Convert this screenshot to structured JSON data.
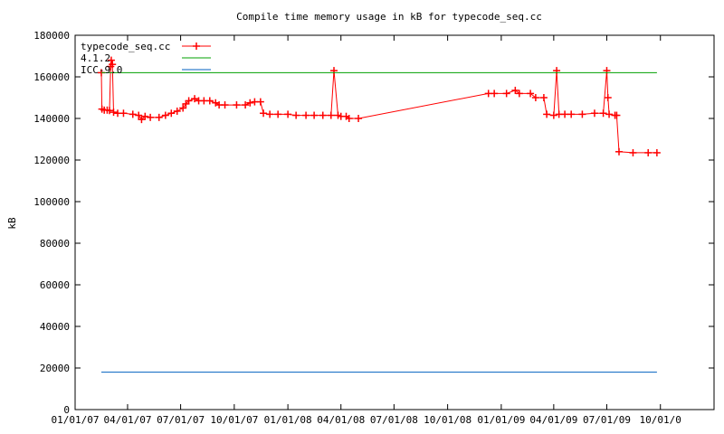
{
  "chart_data": {
    "type": "line",
    "title": "Compile time memory usage in kB for typecode_seq.cc",
    "xlabel": "",
    "ylabel": "kB",
    "xlim": [
      "2007-01-01",
      "2010-01-01"
    ],
    "ylim": [
      0,
      180000
    ],
    "grid": false,
    "legend_position": "top-left",
    "y_ticks": [
      0,
      20000,
      40000,
      60000,
      80000,
      100000,
      120000,
      140000,
      160000,
      180000
    ],
    "y_tick_labels": [
      "0",
      "20000",
      "40000",
      "60000",
      "80000",
      "100000",
      "120000",
      "140000",
      "160000",
      "180000"
    ],
    "x_ticks": [
      "2007-01-01",
      "2007-04-01",
      "2007-07-01",
      "2007-10-01",
      "2008-01-01",
      "2008-04-01",
      "2008-07-01",
      "2008-10-01",
      "2009-01-01",
      "2009-04-01",
      "2009-07-01",
      "2009-10-01"
    ],
    "x_tick_labels": [
      "01/01/07",
      "04/01/07",
      "07/01/07",
      "10/01/07",
      "01/01/08",
      "04/01/08",
      "07/01/08",
      "10/01/08",
      "01/01/09",
      "04/01/09",
      "07/01/09",
      "10/01/0"
    ],
    "series": [
      {
        "name": "typecode_seq.cc",
        "color": "#ff0000",
        "style": "linespoints",
        "points": [
          [
            "2007-02-15",
            162000
          ],
          [
            "2007-02-16",
            144500
          ],
          [
            "2007-02-20",
            144000
          ],
          [
            "2007-02-25",
            144000
          ],
          [
            "2007-03-01",
            143800
          ],
          [
            "2007-03-03",
            165000
          ],
          [
            "2007-03-04",
            168000
          ],
          [
            "2007-03-06",
            166000
          ],
          [
            "2007-03-08",
            143000
          ],
          [
            "2007-03-15",
            142500
          ],
          [
            "2007-03-25",
            142500
          ],
          [
            "2007-04-10",
            142000
          ],
          [
            "2007-04-20",
            141500
          ],
          [
            "2007-04-25",
            139500
          ],
          [
            "2007-05-01",
            141000
          ],
          [
            "2007-05-10",
            140500
          ],
          [
            "2007-05-25",
            140500
          ],
          [
            "2007-06-05",
            141500
          ],
          [
            "2007-06-15",
            142500
          ],
          [
            "2007-06-25",
            143500
          ],
          [
            "2007-07-05",
            145000
          ],
          [
            "2007-07-10",
            147000
          ],
          [
            "2007-07-15",
            148500
          ],
          [
            "2007-07-25",
            149500
          ],
          [
            "2007-08-01",
            148500
          ],
          [
            "2007-08-10",
            148500
          ],
          [
            "2007-08-20",
            148500
          ],
          [
            "2007-08-30",
            147500
          ],
          [
            "2007-09-05",
            146500
          ],
          [
            "2007-09-15",
            146500
          ],
          [
            "2007-10-05",
            146500
          ],
          [
            "2007-10-20",
            146500
          ],
          [
            "2007-10-28",
            147500
          ],
          [
            "2007-11-05",
            148000
          ],
          [
            "2007-11-15",
            148000
          ],
          [
            "2007-11-20",
            142500
          ],
          [
            "2007-12-01",
            142000
          ],
          [
            "2007-12-15",
            142000
          ],
          [
            "2008-01-01",
            142000
          ],
          [
            "2008-01-15",
            141500
          ],
          [
            "2008-02-01",
            141500
          ],
          [
            "2008-02-15",
            141500
          ],
          [
            "2008-03-01",
            141500
          ],
          [
            "2008-03-15",
            141500
          ],
          [
            "2008-03-20",
            163000
          ],
          [
            "2008-03-27",
            141500
          ],
          [
            "2008-04-01",
            141000
          ],
          [
            "2008-04-10",
            141000
          ],
          [
            "2008-04-15",
            140000
          ],
          [
            "2008-05-01",
            140000
          ],
          [
            "2008-12-10",
            152000
          ],
          [
            "2008-12-20",
            152000
          ],
          [
            "2009-01-10",
            152000
          ],
          [
            "2009-01-25",
            153500
          ],
          [
            "2009-02-01",
            152000
          ],
          [
            "2009-02-20",
            152000
          ],
          [
            "2009-03-01",
            150000
          ],
          [
            "2009-03-15",
            150000
          ],
          [
            "2009-03-20",
            142000
          ],
          [
            "2009-04-01",
            141500
          ],
          [
            "2009-04-06",
            163000
          ],
          [
            "2009-04-10",
            142000
          ],
          [
            "2009-04-20",
            142000
          ],
          [
            "2009-05-01",
            142000
          ],
          [
            "2009-05-20",
            142000
          ],
          [
            "2009-06-10",
            142500
          ],
          [
            "2009-06-25",
            142500
          ],
          [
            "2009-07-01",
            163000
          ],
          [
            "2009-07-03",
            150000
          ],
          [
            "2009-07-05",
            142000
          ],
          [
            "2009-07-15",
            141500
          ],
          [
            "2009-07-18",
            141500
          ],
          [
            "2009-07-22",
            124000
          ],
          [
            "2009-08-15",
            123500
          ],
          [
            "2009-09-10",
            123500
          ],
          [
            "2009-09-25",
            123500
          ]
        ]
      },
      {
        "name": "4.1.2",
        "color": "#00a000",
        "style": "lines",
        "points": [
          [
            "2007-02-15",
            162000
          ],
          [
            "2009-09-25",
            162000
          ]
        ]
      },
      {
        "name": "ICC-9.0",
        "color": "#0060c0",
        "style": "lines",
        "points": [
          [
            "2007-02-15",
            18000
          ],
          [
            "2009-09-25",
            18000
          ]
        ]
      }
    ]
  }
}
